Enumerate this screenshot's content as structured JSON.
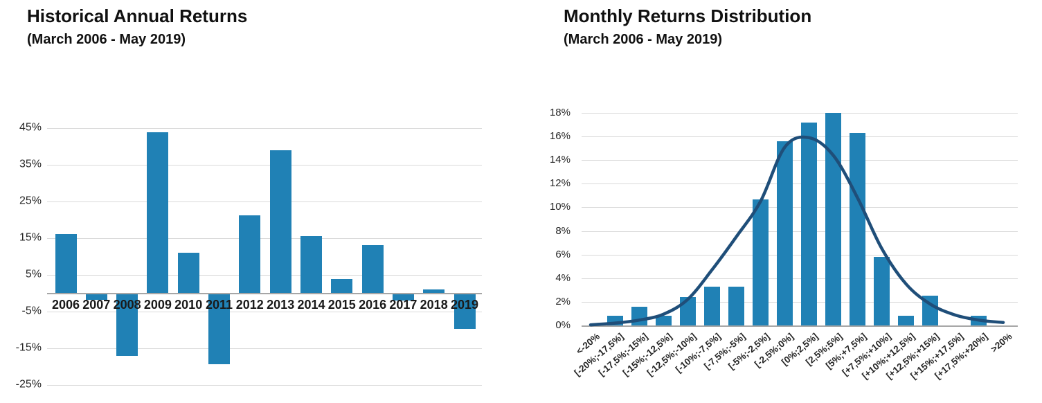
{
  "page": {
    "background": "#FFFFFF"
  },
  "colors": {
    "bar": "#2081B5",
    "curve": "#1F4E79",
    "gridline": "#D9D9D9",
    "axis": "#A6A6A6",
    "text": "#262626",
    "title": "#111111"
  },
  "chart_data": [
    {
      "type": "bar",
      "title": "Historical Annual Returns",
      "subtitle": "(March 2006 - May 2019)",
      "categories": [
        "2006",
        "2007",
        "2008",
        "2009",
        "2010",
        "2011",
        "2012",
        "2013",
        "2014",
        "2015",
        "2016",
        "2017",
        "2018",
        "2019"
      ],
      "values": [
        16.0,
        -1.9,
        -17.1,
        43.8,
        11.0,
        -19.4,
        21.1,
        38.8,
        15.4,
        3.8,
        13.1,
        -2.0,
        1.0,
        -9.8
      ],
      "xlabel": "",
      "ylabel": "",
      "yticks": [
        45,
        35,
        25,
        15,
        5,
        -5,
        -15,
        -25
      ],
      "ytick_labels": [
        "45%",
        "35%",
        "25%",
        "15%",
        "5%",
        "-5%",
        "-15%",
        "-25%"
      ],
      "ylim": [
        -25,
        45
      ],
      "grid": true,
      "legend": false,
      "bar_color": "#2081B5"
    },
    {
      "type": "bar+line",
      "title": "Monthly Returns Distribution",
      "subtitle": "(March 2006 - May 2019)",
      "categories": [
        "<-20%",
        "[-20%;-17,5%]",
        "[-17,5%;-15%]",
        "[-15%;-12,5%]",
        "[-12,5%;-10%]",
        "[-10%;-7,5%]",
        "[-7,5%;-5%]",
        "[-5%;-2,5%]",
        "[-2,5%;0%]",
        "[0%;2,5%]",
        "[2,5%;5%]",
        "[5%;+7,5%]",
        "[+7,5%;+10%]",
        "[+10%;+12,5%]",
        "[+12,5%;+15%]",
        "[+15%;+17,5%]",
        "[+17,5%;+20%]",
        ">20%"
      ],
      "series": [
        {
          "name": "frequency-bars",
          "type": "bar",
          "color": "#2081B5",
          "values": [
            0,
            0.8,
            1.6,
            0.8,
            2.4,
            3.3,
            3.3,
            10.7,
            15.6,
            17.2,
            18.0,
            16.3,
            5.8,
            0.8,
            2.5,
            0,
            0.8,
            0
          ]
        },
        {
          "name": "normal-fit-curve",
          "type": "line",
          "color": "#1F4E79",
          "values": [
            0.05,
            0.2,
            0.45,
            0.95,
            2.2,
            4.7,
            7.5,
            10.5,
            15.1,
            15.9,
            14.4,
            10.8,
            6.5,
            3.5,
            1.8,
            0.9,
            0.45,
            0.25
          ]
        }
      ],
      "xlabel": "",
      "ylabel": "",
      "yticks": [
        18,
        16,
        14,
        12,
        10,
        8,
        6,
        4,
        2,
        0
      ],
      "ytick_labels": [
        "18%",
        "16%",
        "14%",
        "12%",
        "10%",
        "8%",
        "6%",
        "4%",
        "2%",
        "0%"
      ],
      "ylim": [
        0,
        18
      ],
      "grid": true,
      "legend": false
    }
  ]
}
